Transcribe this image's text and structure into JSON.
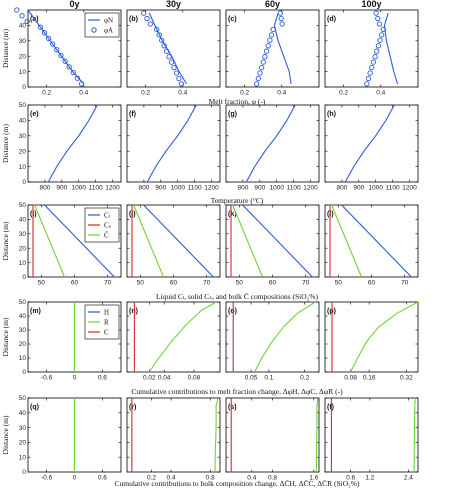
{
  "figure": {
    "columns": [
      "0y",
      "30y",
      "60y",
      "100y"
    ],
    "row_xlabels": [
      "Melt fraction, φ (-)",
      "Temperature (°C)",
      "Liquid Cₗ, solid Cₛ, and bulk C̄ compositions (SiO₂%)",
      "Cumulative contributions to melt fraction change, ΔφH, ΔφC, ΔφR (-)",
      "Cumulative contributions to bulk composition change, ΔC̄H, ΔC̄C, ΔC̄R (SiO₂%)"
    ],
    "ylabel": "Distance (m)"
  },
  "colors": {
    "blue": "#2a5bd7",
    "red": "#d62728",
    "green": "#6fd436"
  },
  "chart_data": [
    {
      "type": "line",
      "panels": [
        "(a)",
        "(b)",
        "(c)",
        "(d)"
      ],
      "xlabel": "Melt fraction, φ (-)",
      "ylabel": "Distance (m)",
      "xlim": [
        0.1,
        0.6
      ],
      "ylim": [
        0,
        50
      ],
      "xticks": [
        0.2,
        0.4
      ],
      "yticks": [
        0,
        10,
        20,
        30,
        40
      ],
      "legend": [
        "φN",
        "φA"
      ],
      "series": [
        {
          "panel": "(a)",
          "name": "φN",
          "x": [
            0.1,
            0.16,
            0.22,
            0.28,
            0.34,
            0.4
          ],
          "y": [
            50,
            40,
            30,
            20,
            10,
            2
          ]
        },
        {
          "panel": "(b)",
          "name": "φN",
          "x": [
            0.22,
            0.25,
            0.29,
            0.34,
            0.38,
            0.42
          ],
          "y": [
            48,
            40,
            30,
            20,
            10,
            2
          ]
        },
        {
          "panel": "(c)",
          "name": "φN",
          "x": [
            0.38,
            0.36,
            0.38,
            0.41,
            0.44,
            0.45
          ],
          "y": [
            48,
            40,
            30,
            20,
            10,
            2
          ]
        },
        {
          "panel": "(d)",
          "name": "φN",
          "x": [
            0.44,
            0.42,
            0.43,
            0.45,
            0.47,
            0.49
          ],
          "y": [
            48,
            40,
            30,
            20,
            10,
            2
          ]
        }
      ]
    },
    {
      "type": "line",
      "panels": [
        "(e)",
        "(f)",
        "(g)",
        "(h)"
      ],
      "xlabel": "Temperature (°C)",
      "ylabel": "Distance (m)",
      "xlim": [
        700,
        1250
      ],
      "ylim": [
        0,
        50
      ],
      "xticks": [
        800,
        900,
        1000,
        1100,
        1200
      ],
      "yticks": [
        0,
        10,
        20,
        30,
        40,
        50
      ],
      "series": [
        {
          "name": "T",
          "x": [
            820,
            870,
            930,
            1000,
            1060,
            1110
          ],
          "y": [
            0,
            10,
            20,
            30,
            40,
            50
          ]
        }
      ]
    },
    {
      "type": "line",
      "panels": [
        "(i)",
        "(j)",
        "(k)",
        "(l)"
      ],
      "xlabel": "Liquid Cₗ, solid Cₛ, and bulk C̄ compositions (SiO₂%)",
      "ylabel": "Distance (m)",
      "xlim": [
        46,
        74
      ],
      "ylim": [
        0,
        50
      ],
      "xticks": [
        50,
        60,
        70
      ],
      "yticks": [
        0,
        10,
        20,
        30,
        40,
        50
      ],
      "legend": [
        "Cₗ",
        "Cₛ",
        "C̄"
      ],
      "series": [
        {
          "name": "Cₗ",
          "x": [
            72,
            51
          ],
          "y": [
            0,
            50
          ]
        },
        {
          "name": "Cₛ",
          "x": [
            47.5,
            47.5
          ],
          "y": [
            0,
            50
          ]
        },
        {
          "name": "C̄",
          "x": [
            57,
            48
          ],
          "y": [
            0,
            50
          ]
        }
      ]
    },
    {
      "type": "line",
      "panels": [
        "(m)",
        "(n)",
        "(o)",
        "(p)"
      ],
      "xlabel": "Cumulative contributions to melt fraction change, ΔφH, ΔφC, ΔφR (-)",
      "ylabel": "Distance (m)",
      "ylim": [
        0,
        50
      ],
      "yticks": [
        0,
        10,
        20,
        30,
        40,
        50
      ],
      "legend": [
        "H",
        "R",
        "C"
      ],
      "subplots": [
        {
          "panel": "(m)",
          "xlim": [
            -1,
            1
          ],
          "xticks": [
            -0.6,
            0,
            0.6
          ],
          "xticklabels": [
            "-0.6",
            "0",
            "0.6"
          ],
          "C": 0,
          "R": {
            "x": [
              0,
              0
            ],
            "y": [
              0,
              50
            ]
          }
        },
        {
          "panel": "(n)",
          "xlim": [
            -0.01,
            0.115
          ],
          "xticks": [
            0.02,
            0.04,
            0.08
          ],
          "xticklabels": [
            "0.02",
            "0.04",
            "0.08"
          ],
          "C": 0,
          "R": {
            "x": [
              0.02,
              0.03,
              0.05,
              0.07,
              0.09,
              0.11
            ],
            "y": [
              0,
              8,
              22,
              34,
              44,
              50
            ]
          }
        },
        {
          "panel": "(o)",
          "xlim": [
            -0.02,
            0.24
          ],
          "xticks": [
            0.05,
            0.1,
            0.2
          ],
          "xticklabels": [
            "0.05",
            "0.1",
            "0.2"
          ],
          "C": 0,
          "R": {
            "x": [
              0.06,
              0.08,
              0.11,
              0.14,
              0.18,
              0.23
            ],
            "y": [
              0,
              10,
              22,
              32,
              42,
              50
            ]
          }
        },
        {
          "panel": "(p)",
          "xlim": [
            -0.03,
            0.37
          ],
          "xticks": [
            0.08,
            0.16,
            0.32
          ],
          "xticklabels": [
            "0.08",
            "0.16",
            "0.32"
          ],
          "C": 0,
          "R": {
            "x": [
              0.08,
              0.11,
              0.15,
              0.2,
              0.28,
              0.37
            ],
            "y": [
              0,
              10,
              22,
              32,
              42,
              50
            ]
          }
        }
      ]
    },
    {
      "type": "line",
      "panels": [
        "(q)",
        "(r)",
        "(s)",
        "(t)"
      ],
      "xlabel": "Cumulative contributions to bulk composition change, ΔC̄H, ΔC̄C, ΔC̄R (SiO₂%)",
      "ylabel": "Distance (m)",
      "ylim": [
        0,
        50
      ],
      "yticks": [
        0,
        10,
        20,
        30,
        40,
        50
      ],
      "subplots": [
        {
          "panel": "(q)",
          "xlim": [
            -1,
            1
          ],
          "xticks": [
            -0.6,
            0,
            0.6
          ],
          "xticklabels": [
            "-0.6",
            "0",
            "0.6"
          ],
          "R": {
            "x": [
              0,
              0
            ],
            "y": [
              0,
              50
            ]
          }
        },
        {
          "panel": "(r)",
          "xlim": [
            -0.05,
            0.9
          ],
          "xticks": [
            0.2,
            0.4,
            0.8
          ],
          "xticklabels": [
            "0.2",
            "0.4",
            "0.8"
          ],
          "R": {
            "x": [
              0.85,
              0.85,
              0.86,
              0.86,
              0.88
            ],
            "y": [
              0,
              10,
              30,
              45,
              50
            ]
          }
        },
        {
          "panel": "(s)",
          "xlim": [
            -0.1,
            1.7
          ],
          "xticks": [
            0.4,
            0.8,
            1.6
          ],
          "xticklabels": [
            "0.4",
            "0.8",
            "1.6"
          ],
          "R": {
            "x": [
              1.65,
              1.65,
              1.66,
              1.66,
              1.68
            ],
            "y": [
              0,
              10,
              30,
              45,
              50
            ]
          }
        },
        {
          "panel": "(t)",
          "xlim": [
            -0.2,
            2.7
          ],
          "xticks": [
            0.6,
            1.2,
            2.4
          ],
          "xticklabels": [
            "0.6",
            "1.2",
            "2.4"
          ],
          "R": {
            "x": [
              2.58,
              2.58,
              2.59,
              2.6,
              2.62
            ],
            "y": [
              0,
              10,
              30,
              45,
              50
            ]
          }
        }
      ]
    }
  ]
}
